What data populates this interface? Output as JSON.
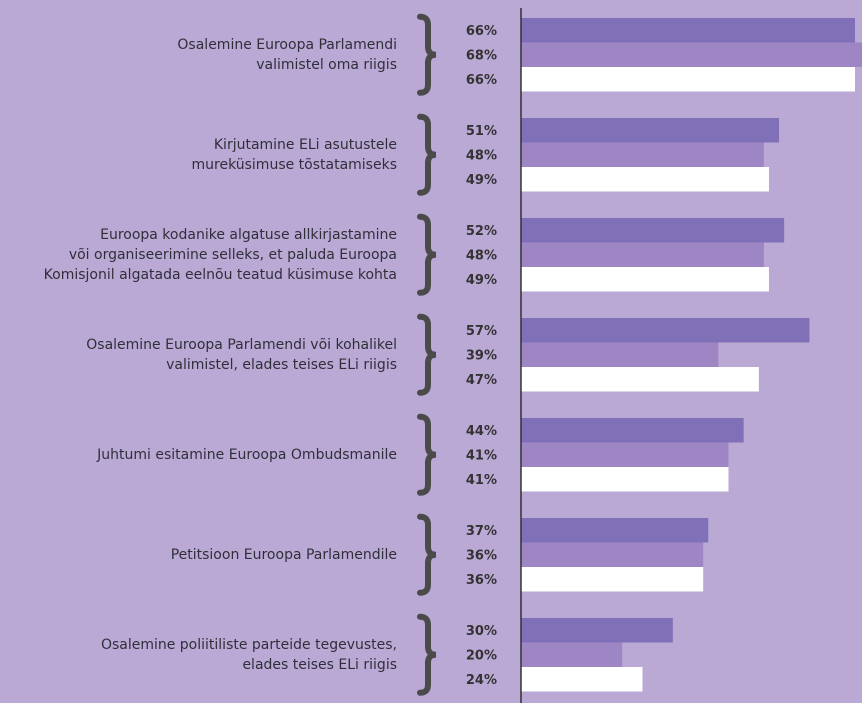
{
  "chart_data": {
    "type": "bar",
    "orientation": "horizontal",
    "categories": [
      "Osalemine Euroopa Parlamendi\nvalimistel oma riigis",
      "Kirjutamine ELi asutustele\nmureküsimuse tõstatamiseks",
      "Euroopa kodanike algatuse allkirjastamine\nvõi organiseerimine selleks, et paluda Euroopa\nKomisjonil algatada eelnõu teatud küsimuse kohta",
      "Osalemine Euroopa Parlamendi või kohalikel\nvalimistel, elades teises ELi riigis",
      "Juhtumi esitamine Euroopa Ombudsmanile",
      "Petitsioon Euroopa Parlamendile",
      "Osalemine poliitiliste parteide tegevustes,\nelades teises ELi riigis"
    ],
    "series": [
      {
        "color": "#8070b8",
        "values": [
          66,
          51,
          52,
          57,
          44,
          37,
          30
        ],
        "value_labels": [
          "66%",
          "51%",
          "52%",
          "57%",
          "44%",
          "37%",
          "30%"
        ]
      },
      {
        "color": "#9e86c5",
        "values": [
          68,
          48,
          48,
          39,
          41,
          36,
          20
        ],
        "value_labels": [
          "68%",
          "48%",
          "48%",
          "39%",
          "41%",
          "36%",
          "20%"
        ]
      },
      {
        "color": "#ffffff",
        "values": [
          66,
          49,
          49,
          47,
          41,
          36,
          24
        ],
        "value_labels": [
          "66%",
          "49%",
          "49%",
          "47%",
          "41%",
          "36%",
          "24%"
        ]
      }
    ],
    "xlim": [
      0,
      66
    ]
  }
}
